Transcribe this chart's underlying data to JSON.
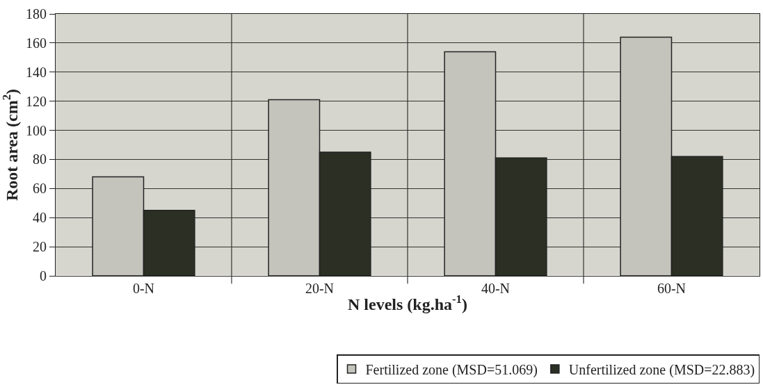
{
  "chart_data": {
    "type": "bar",
    "xlabel": "N levels (kg.ha$^{-1}$)",
    "ylabel": "Root area (cm$^{2}$)",
    "categories": [
      "0-N",
      "20-N",
      "40-N",
      "60-N"
    ],
    "series": [
      {
        "name": "Fertilized zone (MSD=51.069)",
        "color": "#c4c4bc",
        "values": [
          68,
          121,
          154,
          164
        ]
      },
      {
        "name": "Unfertilized zone (MSD=22.883)",
        "color": "#2b2f24",
        "values": [
          45,
          85,
          81,
          82
        ]
      }
    ],
    "ylim": [
      0,
      180
    ],
    "yticks": [
      0,
      20,
      40,
      60,
      80,
      100,
      120,
      140,
      160,
      180
    ],
    "grid": true,
    "legend": "bottom"
  }
}
